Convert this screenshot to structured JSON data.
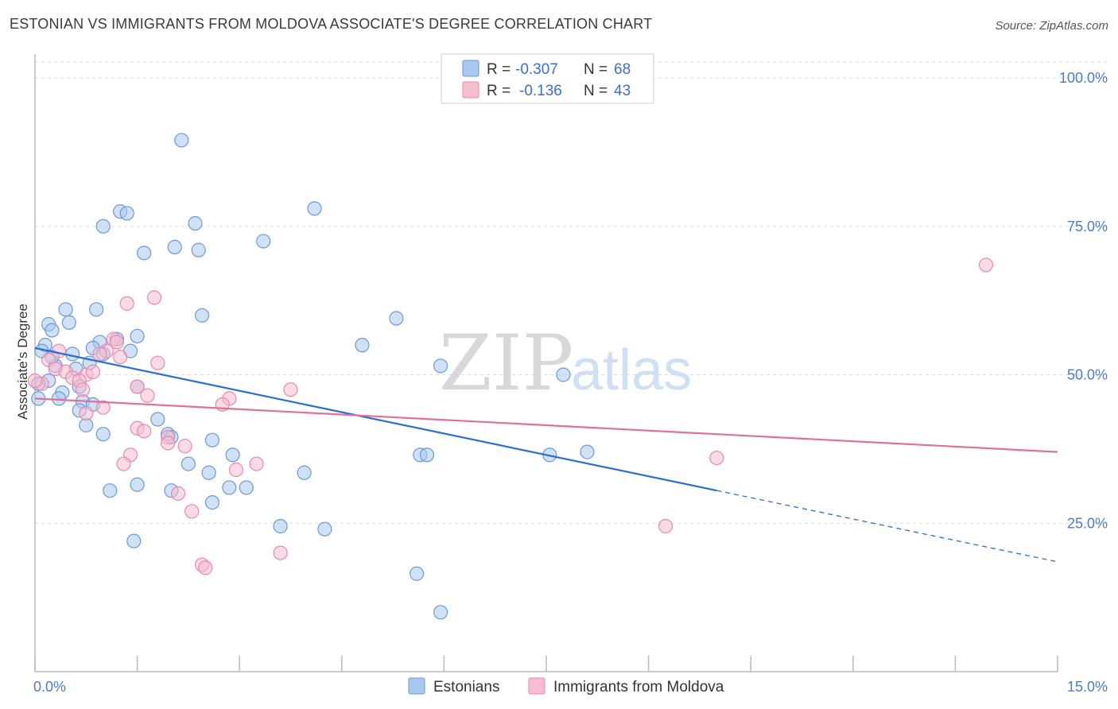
{
  "title": "ESTONIAN VS IMMIGRANTS FROM MOLDOVA ASSOCIATE'S DEGREE CORRELATION CHART",
  "source": "Source: ZipAtlas.com",
  "watermark": {
    "zip": "ZIP",
    "atlas": "atlas"
  },
  "colors": {
    "estonian_fill": "#aac8ef",
    "estonian_stroke": "#6a9ad8",
    "estonian_line": "#2a6fd0",
    "moldova_fill": "#f6bcd0",
    "moldova_stroke": "#e88aa9",
    "moldova_line": "#e0709a",
    "grid": "#dddddd",
    "tick_text": "#4a7cc7"
  },
  "legend": {
    "rows": [
      {
        "r_label": "R =",
        "r_value": "-0.307",
        "n_label": "N =",
        "n_value": "68"
      },
      {
        "r_label": "R =",
        "r_value": "-0.136",
        "n_label": "N =",
        "n_value": "43"
      }
    ]
  },
  "chart_data": {
    "type": "scatter",
    "title": "ESTONIAN VS IMMIGRANTS FROM MOLDOVA ASSOCIATE'S DEGREE CORRELATION CHART",
    "xlabel": "",
    "ylabel": "Associate's Degree",
    "xlim": [
      0,
      15
    ],
    "ylim": [
      0,
      100
    ],
    "x_tick_labels": [
      {
        "value": 0,
        "label": "0.0%"
      },
      {
        "value": 15,
        "label": "15.0%"
      }
    ],
    "y_tick_labels": [
      {
        "value": 25,
        "label": "25.0%"
      },
      {
        "value": 50,
        "label": "50.0%"
      },
      {
        "value": 75,
        "label": "75.0%"
      },
      {
        "value": 100,
        "label": "100.0%"
      }
    ],
    "series": [
      {
        "name": "Estonians",
        "r": -0.307,
        "n": 68,
        "trend": {
          "x0": 0.0,
          "y0": 54.5,
          "x1": 10.0,
          "y1": 30.5,
          "dash_to_x": 15.0,
          "dash_to_y": 18.5
        },
        "points": [
          [
            2.15,
            89.5
          ],
          [
            1.25,
            77.5
          ],
          [
            1.35,
            77.2
          ],
          [
            4.1,
            78.0
          ],
          [
            1.0,
            75.0
          ],
          [
            2.35,
            75.5
          ],
          [
            1.6,
            70.5
          ],
          [
            2.05,
            71.5
          ],
          [
            2.4,
            71.0
          ],
          [
            3.35,
            72.5
          ],
          [
            0.45,
            61.0
          ],
          [
            0.9,
            61.0
          ],
          [
            2.45,
            60.0
          ],
          [
            5.3,
            59.5
          ],
          [
            0.2,
            58.5
          ],
          [
            0.25,
            57.5
          ],
          [
            0.5,
            58.8
          ],
          [
            1.5,
            56.5
          ],
          [
            1.2,
            56.0
          ],
          [
            0.95,
            55.5
          ],
          [
            0.85,
            54.5
          ],
          [
            0.15,
            55.0
          ],
          [
            0.1,
            54.0
          ],
          [
            1.4,
            54.0
          ],
          [
            4.8,
            55.0
          ],
          [
            0.55,
            53.5
          ],
          [
            1.0,
            53.5
          ],
          [
            0.8,
            52.0
          ],
          [
            0.3,
            51.5
          ],
          [
            0.6,
            51.0
          ],
          [
            5.95,
            51.5
          ],
          [
            7.75,
            50.0
          ],
          [
            0.2,
            49.0
          ],
          [
            0.05,
            48.5
          ],
          [
            1.5,
            48.0
          ],
          [
            0.4,
            47.0
          ],
          [
            0.35,
            46.0
          ],
          [
            0.7,
            45.5
          ],
          [
            0.85,
            45.0
          ],
          [
            0.65,
            44.0
          ],
          [
            1.8,
            42.5
          ],
          [
            0.75,
            41.5
          ],
          [
            1.0,
            40.0
          ],
          [
            1.95,
            40.0
          ],
          [
            2.0,
            39.5
          ],
          [
            2.6,
            39.0
          ],
          [
            2.9,
            36.5
          ],
          [
            5.65,
            36.5
          ],
          [
            5.75,
            36.5
          ],
          [
            7.55,
            36.5
          ],
          [
            8.1,
            37.0
          ],
          [
            2.25,
            35.0
          ],
          [
            2.55,
            33.5
          ],
          [
            3.95,
            33.5
          ],
          [
            1.5,
            31.5
          ],
          [
            2.85,
            31.0
          ],
          [
            3.1,
            31.0
          ],
          [
            1.1,
            30.5
          ],
          [
            2.0,
            30.5
          ],
          [
            2.6,
            28.5
          ],
          [
            3.6,
            24.5
          ],
          [
            4.25,
            24.0
          ],
          [
            1.45,
            22.0
          ],
          [
            5.6,
            16.5
          ],
          [
            5.95,
            10.0
          ],
          [
            0.25,
            53.0
          ],
          [
            0.65,
            48.0
          ],
          [
            0.05,
            46.0
          ]
        ]
      },
      {
        "name": "Immigrants from Moldova",
        "r": -0.136,
        "n": 43,
        "trend": {
          "x0": 0.0,
          "y0": 46.0,
          "x1": 15.0,
          "y1": 37.0
        },
        "points": [
          [
            13.95,
            68.5
          ],
          [
            1.75,
            63.0
          ],
          [
            1.35,
            62.0
          ],
          [
            1.15,
            56.0
          ],
          [
            1.2,
            55.5
          ],
          [
            1.05,
            54.0
          ],
          [
            0.35,
            54.0
          ],
          [
            0.95,
            53.5
          ],
          [
            1.25,
            53.0
          ],
          [
            0.2,
            52.5
          ],
          [
            1.8,
            52.0
          ],
          [
            0.3,
            51.0
          ],
          [
            0.45,
            50.5
          ],
          [
            0.75,
            50.0
          ],
          [
            0.55,
            49.5
          ],
          [
            0.65,
            49.0
          ],
          [
            0.1,
            48.5
          ],
          [
            1.5,
            48.0
          ],
          [
            3.75,
            47.5
          ],
          [
            0.7,
            47.5
          ],
          [
            1.65,
            46.5
          ],
          [
            2.85,
            46.0
          ],
          [
            2.75,
            45.0
          ],
          [
            1.0,
            44.5
          ],
          [
            0.75,
            43.5
          ],
          [
            1.5,
            41.0
          ],
          [
            1.6,
            40.5
          ],
          [
            1.95,
            39.5
          ],
          [
            1.95,
            38.5
          ],
          [
            2.2,
            38.0
          ],
          [
            1.4,
            36.5
          ],
          [
            10.0,
            36.0
          ],
          [
            1.3,
            35.0
          ],
          [
            3.25,
            35.0
          ],
          [
            2.95,
            34.0
          ],
          [
            2.1,
            30.0
          ],
          [
            2.3,
            27.0
          ],
          [
            9.25,
            24.5
          ],
          [
            3.6,
            20.0
          ],
          [
            2.45,
            18.0
          ],
          [
            2.5,
            17.5
          ],
          [
            0.0,
            49.0
          ],
          [
            0.85,
            50.5
          ]
        ]
      }
    ]
  },
  "bottom_legend": [
    {
      "label": "Estonians"
    },
    {
      "label": "Immigrants from Moldova"
    }
  ]
}
